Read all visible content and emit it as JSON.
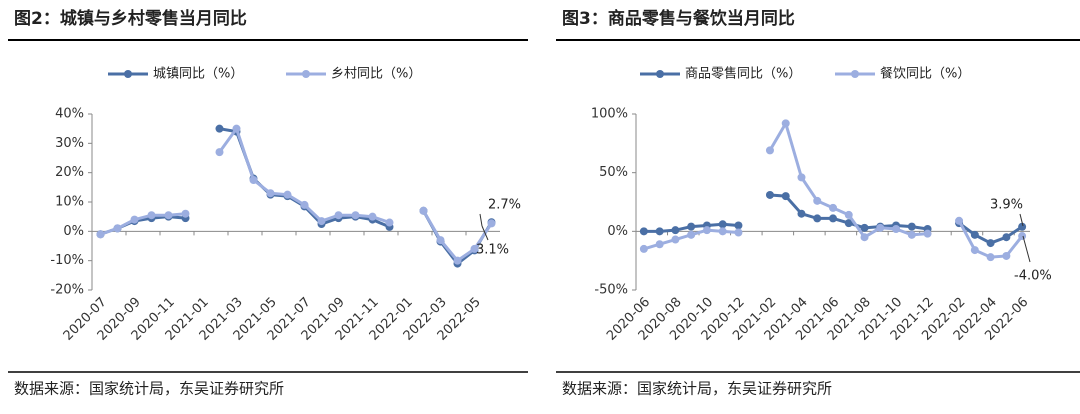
{
  "chart_data": [
    {
      "type": "line",
      "title": "图2：城镇与乡村零售当月同比",
      "source": "数据来源：国家统计局，东吴证券研究所",
      "categories": [
        "2020-07",
        null,
        "2020-09",
        null,
        "2020-11",
        null,
        "2021-01",
        null,
        "2021-03",
        null,
        "2021-05",
        null,
        "2021-07",
        null,
        "2021-09",
        null,
        "2021-11",
        null,
        "2022-01",
        null,
        "2022-03",
        null,
        "2022-05",
        null
      ],
      "series": [
        {
          "name": "城镇同比（%）",
          "color": "#4a6fa5",
          "values": [
            -1,
            1,
            3.5,
            4.5,
            5,
            4.5,
            null,
            35,
            34,
            18,
            12.5,
            12,
            8.5,
            2.5,
            4.5,
            5,
            4,
            1.5,
            null,
            7,
            -3.5,
            -11,
            -6.5,
            3.1
          ]
        },
        {
          "name": "乡村同比（%）",
          "color": "#9caee0",
          "values": [
            -1,
            1,
            4,
            5.5,
            5.5,
            6,
            null,
            27,
            35,
            17.5,
            13,
            12.5,
            9,
            3.5,
            5.5,
            5.5,
            5,
            3,
            null,
            7,
            -3,
            -10,
            -6,
            2.7
          ]
        }
      ],
      "ylim": [
        -20,
        40
      ],
      "yticks": [
        {
          "value": -20,
          "label": "-20%"
        },
        {
          "value": -10,
          "label": "-10%"
        },
        {
          "value": 0,
          "label": "0%"
        },
        {
          "value": 10,
          "label": "10%"
        },
        {
          "value": 20,
          "label": "20%"
        },
        {
          "value": 30,
          "label": "30%"
        },
        {
          "value": 40,
          "label": "40%"
        }
      ],
      "annotations": [
        "2.7%",
        "3.1%"
      ]
    },
    {
      "type": "line",
      "title": "图3：商品零售与餐饮当月同比",
      "source": "数据来源：国家统计局，东吴证券研究所",
      "categories": [
        "2020-06",
        null,
        "2020-08",
        null,
        "2020-10",
        null,
        "2020-12",
        null,
        "2021-02",
        null,
        "2021-04",
        null,
        "2021-06",
        null,
        "2021-08",
        null,
        "2021-10",
        null,
        "2021-12",
        null,
        "2022-02",
        null,
        "2022-04",
        null,
        "2022-06"
      ],
      "series": [
        {
          "name": "商品零售同比（%）",
          "color": "#4a6fa5",
          "values": [
            0,
            0,
            1,
            4,
            5,
            6,
            5,
            null,
            31,
            30,
            15,
            11,
            11,
            7,
            3,
            4,
            5,
            4,
            2,
            null,
            7,
            -3,
            -10,
            -5,
            3.9
          ]
        },
        {
          "name": "餐饮同比（%）",
          "color": "#9caee0",
          "values": [
            -15,
            -11,
            -7,
            -3,
            1,
            0,
            -1,
            null,
            69,
            92,
            46,
            26,
            20,
            14,
            -5,
            3,
            2,
            -3,
            -2,
            null,
            9,
            -16,
            -22,
            -21,
            -4
          ]
        }
      ],
      "ylim": [
        -50,
        100
      ],
      "yticks": [
        {
          "value": -50,
          "label": "-50%"
        },
        {
          "value": 0,
          "label": "0%"
        },
        {
          "value": 50,
          "label": "50%"
        },
        {
          "value": 100,
          "label": "100%"
        }
      ],
      "annotations": [
        "3.9%",
        "-4.0%"
      ]
    }
  ]
}
